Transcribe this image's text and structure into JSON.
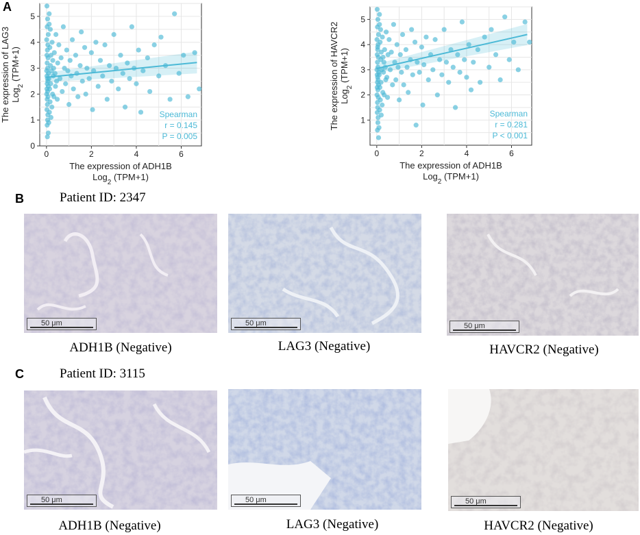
{
  "panels": {
    "a": "A",
    "b": "B",
    "c": "C"
  },
  "chart_data": [
    {
      "type": "scatter",
      "xlabel": "The expression of ADH1B",
      "xlabel2": "Log2 (TPM+1)",
      "ylabel": "The expression of LAG3",
      "ylabel2": "Log2 (TPM+1)",
      "xlim": [
        -0.3,
        6.9
      ],
      "ylim": [
        0,
        5.5
      ],
      "xticks": [
        0,
        2,
        4,
        6
      ],
      "yticks": [
        0,
        1,
        2,
        3,
        4,
        5
      ],
      "grid": true,
      "fit": {
        "x": [
          0,
          6.7
        ],
        "y": [
          2.65,
          3.22
        ]
      },
      "stats": {
        "method": "Spearman",
        "r": "r = 0.145",
        "p": "P = 0.005"
      },
      "color": "#4bb9d6",
      "points": [
        [
          0.02,
          5.4
        ],
        [
          0.05,
          4.9
        ],
        [
          0.03,
          4.6
        ],
        [
          0.08,
          4.3
        ],
        [
          0.01,
          4.1
        ],
        [
          0.06,
          3.9
        ],
        [
          0.04,
          3.7
        ],
        [
          0.02,
          3.5
        ],
        [
          0.07,
          3.4
        ],
        [
          0.03,
          3.2
        ],
        [
          0.05,
          3.0
        ],
        [
          0.01,
          2.9
        ],
        [
          0.09,
          2.8
        ],
        [
          0.02,
          2.7
        ],
        [
          0.04,
          2.6
        ],
        [
          0.06,
          2.5
        ],
        [
          0.03,
          2.4
        ],
        [
          0.08,
          2.3
        ],
        [
          0.02,
          2.2
        ],
        [
          0.05,
          2.1
        ],
        [
          0.01,
          2.0
        ],
        [
          0.07,
          1.9
        ],
        [
          0.03,
          1.8
        ],
        [
          0.04,
          1.6
        ],
        [
          0.02,
          1.4
        ],
        [
          0.06,
          1.2
        ],
        [
          0.05,
          1.0
        ],
        [
          0.03,
          0.8
        ],
        [
          0.08,
          0.5
        ],
        [
          0.04,
          0.35
        ],
        [
          0.12,
          4.7
        ],
        [
          0.15,
          3.8
        ],
        [
          0.18,
          3.1
        ],
        [
          0.11,
          2.6
        ],
        [
          0.14,
          2.2
        ],
        [
          0.16,
          1.7
        ],
        [
          0.13,
          1.3
        ],
        [
          0.2,
          3.5
        ],
        [
          0.22,
          2.9
        ],
        [
          0.19,
          2.4
        ],
        [
          0.25,
          4.0
        ],
        [
          0.28,
          3.3
        ],
        [
          0.3,
          2.7
        ],
        [
          0.27,
          2.0
        ],
        [
          0.24,
          1.5
        ],
        [
          0.35,
          3.6
        ],
        [
          0.38,
          2.8
        ],
        [
          0.4,
          2.3
        ],
        [
          0.33,
          1.9
        ],
        [
          0.42,
          4.3
        ],
        [
          0.1,
          0.9
        ],
        [
          0.2,
          1.1
        ],
        [
          0.12,
          5.1
        ],
        [
          0.17,
          4.5
        ],
        [
          0.32,
          3.0
        ],
        [
          0.45,
          2.5
        ],
        [
          0.5,
          3.2
        ],
        [
          0.48,
          1.8
        ],
        [
          0.55,
          3.9
        ],
        [
          0.6,
          2.6
        ],
        [
          0.65,
          3.4
        ],
        [
          0.7,
          2.1
        ],
        [
          0.75,
          4.6
        ],
        [
          0.8,
          3.0
        ],
        [
          0.85,
          2.4
        ],
        [
          0.9,
          3.7
        ],
        [
          0.95,
          2.9
        ],
        [
          1.0,
          1.6
        ],
        [
          1.05,
          3.3
        ],
        [
          1.1,
          2.7
        ],
        [
          1.15,
          4.1
        ],
        [
          1.2,
          2.2
        ],
        [
          1.3,
          3.5
        ],
        [
          1.35,
          2.8
        ],
        [
          1.4,
          1.9
        ],
        [
          1.5,
          3.1
        ],
        [
          1.55,
          4.4
        ],
        [
          1.6,
          2.5
        ],
        [
          1.7,
          3.8
        ],
        [
          1.75,
          2.0
        ],
        [
          1.8,
          3.0
        ],
        [
          1.9,
          2.6
        ],
        [
          2.0,
          3.6
        ],
        [
          2.05,
          1.4
        ],
        [
          2.1,
          2.9
        ],
        [
          2.2,
          4.0
        ],
        [
          2.3,
          2.3
        ],
        [
          2.4,
          3.3
        ],
        [
          2.5,
          2.7
        ],
        [
          2.6,
          3.9
        ],
        [
          2.7,
          1.8
        ],
        [
          2.8,
          3.1
        ],
        [
          2.9,
          2.5
        ],
        [
          3.0,
          4.3
        ],
        [
          3.1,
          3.0
        ],
        [
          3.2,
          2.2
        ],
        [
          3.3,
          3.5
        ],
        [
          3.4,
          2.8
        ],
        [
          3.5,
          1.5
        ],
        [
          3.6,
          3.2
        ],
        [
          3.7,
          2.6
        ],
        [
          3.8,
          4.6
        ],
        [
          3.9,
          3.0
        ],
        [
          4.0,
          2.4
        ],
        [
          4.1,
          3.7
        ],
        [
          4.2,
          1.3
        ],
        [
          4.3,
          2.9
        ],
        [
          4.5,
          3.4
        ],
        [
          4.6,
          2.1
        ],
        [
          4.8,
          3.9
        ],
        [
          5.0,
          2.7
        ],
        [
          5.1,
          4.2
        ],
        [
          5.3,
          3.1
        ],
        [
          5.5,
          1.8
        ],
        [
          5.7,
          5.1
        ],
        [
          5.9,
          2.8
        ],
        [
          6.1,
          3.5
        ],
        [
          6.3,
          1.9
        ],
        [
          6.6,
          3.6
        ],
        [
          6.8,
          2.2
        ]
      ]
    },
    {
      "type": "scatter",
      "xlabel": "The expression of ADH1B",
      "xlabel2": "Log2 (TPM+1)",
      "ylabel": "The expression of HAVCR2",
      "ylabel2": "Log2 (TPM+1)",
      "xlim": [
        -0.3,
        6.9
      ],
      "ylim": [
        0,
        5.5
      ],
      "xticks": [
        0,
        2,
        4,
        6
      ],
      "yticks": [
        1,
        2,
        3,
        4,
        5
      ],
      "grid": true,
      "fit": {
        "x": [
          0,
          6.7
        ],
        "y": [
          3.05,
          4.4
        ]
      },
      "stats": {
        "method": "Spearman",
        "r": "r = 0.281",
        "p": "P < 0.001"
      },
      "color": "#4bb9d6",
      "points": [
        [
          0.02,
          5.4
        ],
        [
          0.05,
          5.0
        ],
        [
          0.03,
          4.7
        ],
        [
          0.08,
          4.4
        ],
        [
          0.01,
          4.2
        ],
        [
          0.06,
          4.0
        ],
        [
          0.04,
          3.8
        ],
        [
          0.02,
          3.6
        ],
        [
          0.07,
          3.5
        ],
        [
          0.03,
          3.3
        ],
        [
          0.05,
          3.1
        ],
        [
          0.01,
          3.0
        ],
        [
          0.09,
          2.9
        ],
        [
          0.02,
          2.8
        ],
        [
          0.04,
          2.7
        ],
        [
          0.06,
          2.6
        ],
        [
          0.03,
          2.5
        ],
        [
          0.08,
          2.4
        ],
        [
          0.02,
          2.3
        ],
        [
          0.05,
          2.2
        ],
        [
          0.01,
          2.0
        ],
        [
          0.07,
          1.9
        ],
        [
          0.03,
          1.7
        ],
        [
          0.04,
          1.5
        ],
        [
          0.02,
          1.3
        ],
        [
          0.06,
          1.1
        ],
        [
          0.05,
          0.9
        ],
        [
          0.03,
          0.6
        ],
        [
          0.08,
          0.3
        ],
        [
          0.04,
          3.9
        ],
        [
          0.12,
          4.8
        ],
        [
          0.15,
          4.1
        ],
        [
          0.18,
          3.4
        ],
        [
          0.11,
          2.8
        ],
        [
          0.14,
          2.3
        ],
        [
          0.16,
          1.8
        ],
        [
          0.13,
          1.4
        ],
        [
          0.2,
          3.7
        ],
        [
          0.22,
          3.0
        ],
        [
          0.19,
          2.5
        ],
        [
          0.25,
          4.3
        ],
        [
          0.28,
          3.5
        ],
        [
          0.3,
          2.9
        ],
        [
          0.27,
          2.1
        ],
        [
          0.24,
          1.6
        ],
        [
          0.35,
          3.8
        ],
        [
          0.38,
          3.1
        ],
        [
          0.4,
          2.6
        ],
        [
          0.33,
          2.0
        ],
        [
          0.42,
          4.5
        ],
        [
          0.1,
          0.7
        ],
        [
          0.2,
          1.2
        ],
        [
          0.12,
          5.2
        ],
        [
          0.17,
          4.6
        ],
        [
          0.32,
          3.3
        ],
        [
          0.45,
          2.7
        ],
        [
          0.5,
          3.6
        ],
        [
          0.48,
          1.9
        ],
        [
          0.55,
          4.2
        ],
        [
          0.6,
          3.0
        ],
        [
          0.65,
          3.7
        ],
        [
          0.7,
          2.4
        ],
        [
          0.75,
          4.8
        ],
        [
          0.8,
          3.3
        ],
        [
          0.85,
          2.6
        ],
        [
          0.9,
          4.0
        ],
        [
          0.95,
          3.1
        ],
        [
          1.0,
          1.8
        ],
        [
          1.05,
          3.6
        ],
        [
          1.1,
          2.9
        ],
        [
          1.15,
          4.4
        ],
        [
          1.2,
          2.4
        ],
        [
          1.3,
          3.8
        ],
        [
          1.35,
          3.1
        ],
        [
          1.4,
          2.1
        ],
        [
          1.5,
          3.4
        ],
        [
          1.55,
          4.6
        ],
        [
          1.6,
          2.8
        ],
        [
          1.7,
          4.1
        ],
        [
          1.75,
          0.8
        ],
        [
          1.8,
          3.3
        ],
        [
          1.9,
          2.9
        ],
        [
          2.0,
          3.9
        ],
        [
          2.05,
          1.6
        ],
        [
          2.1,
          3.2
        ],
        [
          2.2,
          4.3
        ],
        [
          2.3,
          2.6
        ],
        [
          2.4,
          3.6
        ],
        [
          2.5,
          3.0
        ],
        [
          2.6,
          4.2
        ],
        [
          2.7,
          2.0
        ],
        [
          2.8,
          3.4
        ],
        [
          2.9,
          2.8
        ],
        [
          3.0,
          4.6
        ],
        [
          3.1,
          3.3
        ],
        [
          3.2,
          2.5
        ],
        [
          3.3,
          3.8
        ],
        [
          3.4,
          3.1
        ],
        [
          3.5,
          1.5
        ],
        [
          3.6,
          3.6
        ],
        [
          3.7,
          2.9
        ],
        [
          3.8,
          4.9
        ],
        [
          3.9,
          3.4
        ],
        [
          4.0,
          2.7
        ],
        [
          4.1,
          4.0
        ],
        [
          4.2,
          2.2
        ],
        [
          4.3,
          3.3
        ],
        [
          4.5,
          3.8
        ],
        [
          4.6,
          2.5
        ],
        [
          4.8,
          4.3
        ],
        [
          5.0,
          3.1
        ],
        [
          5.1,
          4.6
        ],
        [
          5.3,
          3.6
        ],
        [
          5.5,
          2.6
        ],
        [
          5.7,
          5.1
        ],
        [
          5.9,
          3.4
        ],
        [
          6.1,
          4.1
        ],
        [
          6.3,
          3.0
        ],
        [
          6.6,
          4.9
        ],
        [
          6.8,
          4.1
        ]
      ]
    }
  ],
  "patients": {
    "b": "Patient ID: 2347",
    "c": "Patient ID: 3115"
  },
  "scalebar": "50 μm",
  "captions": {
    "b": [
      "ADH1B (Negative)",
      "LAG3 (Negative)",
      "HAVCR2 (Negative)"
    ],
    "c": [
      "ADH1B (Negative)",
      "LAG3 (Negative)",
      "HAVCR2 (Negative)"
    ]
  }
}
